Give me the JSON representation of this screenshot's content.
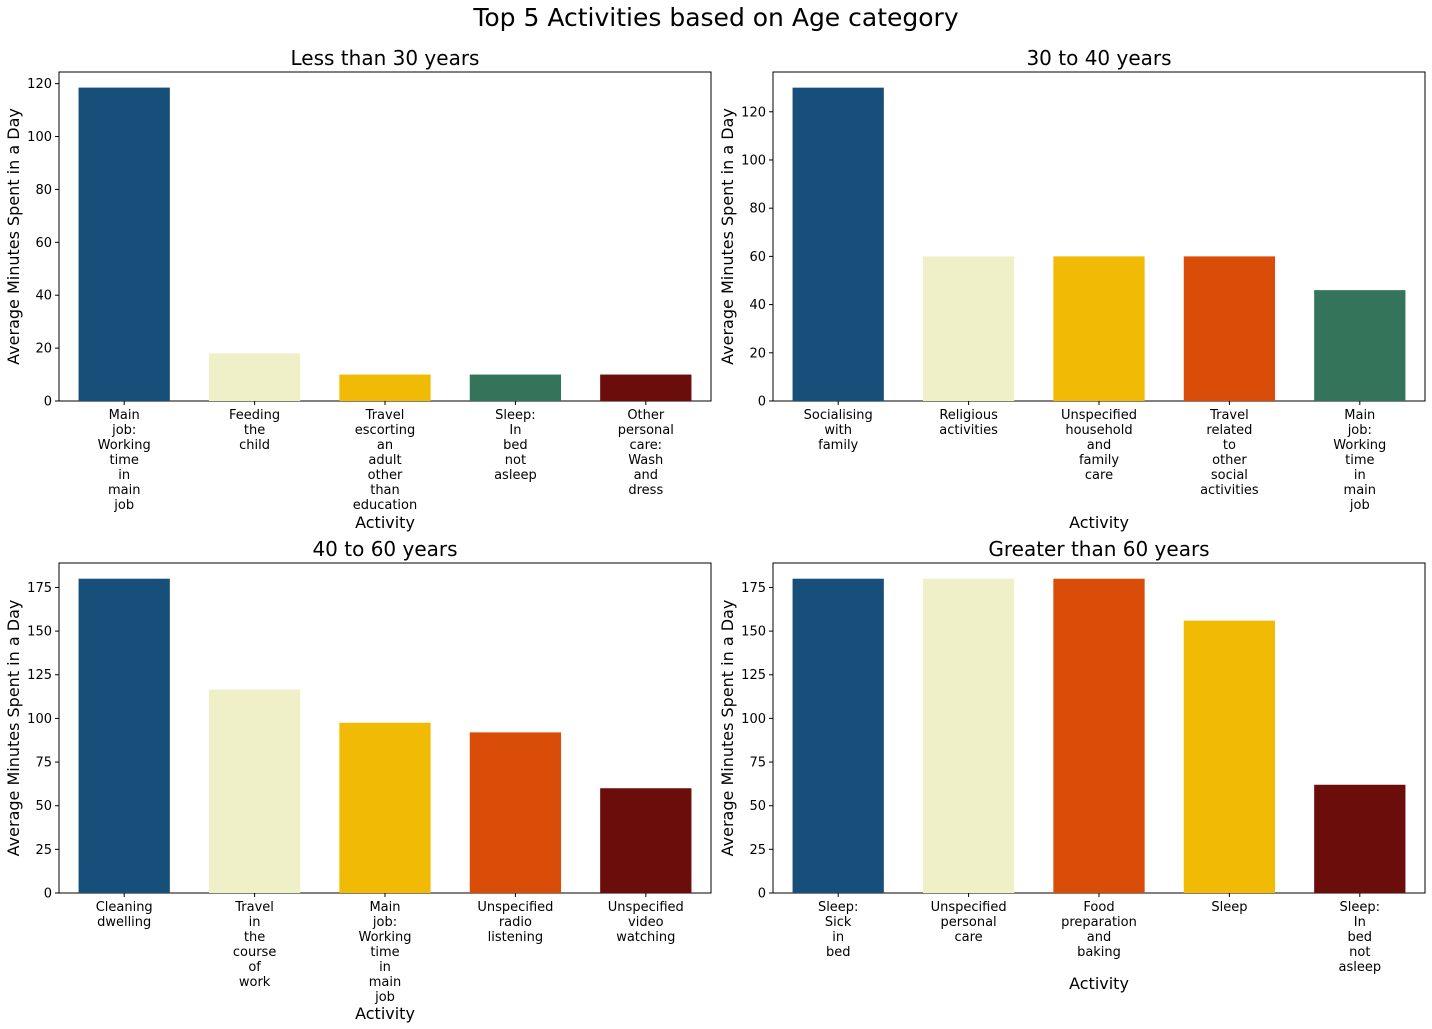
{
  "suptitle": "Top 5 Activities based on Age category",
  "chart_data": [
    {
      "type": "bar",
      "title": "Less than 30 years",
      "xlabel": "Activity",
      "ylabel": "Average Minutes Spent in a Day",
      "categories": [
        "Main\njob:\nWorking\ntime\nin\nmain\njob",
        "Feeding\nthe\nchild",
        "Travel\nescorting\nan\nadult\nother\nthan\neducation",
        "Sleep:\nIn\nbed\nnot\nasleep",
        "Other\npersonal\ncare:\nWash\nand\ndress"
      ],
      "values": [
        118.5,
        18,
        10,
        10,
        10
      ],
      "colors": [
        "#154f7a",
        "#f0f0c8",
        "#f1bb05",
        "#33745a",
        "#6b0e0b"
      ],
      "ylim": [
        0,
        124.4
      ],
      "yticks": [
        0,
        20,
        40,
        60,
        80,
        100,
        120
      ],
      "grid": false
    },
    {
      "type": "bar",
      "title": "30 to 40 years",
      "xlabel": "Activity",
      "ylabel": "Average Minutes Spent in a Day",
      "categories": [
        "Socialising\nwith\nfamily",
        "Religious\nactivities",
        "Unspecified\nhousehold\nand\nfamily\ncare",
        "Travel\nrelated\nto\nother\nsocial\nactivities",
        "Main\njob:\nWorking\ntime\nin\nmain\njob"
      ],
      "values": [
        130,
        60,
        60,
        60,
        46
      ],
      "colors": [
        "#154f7a",
        "#f0f0c8",
        "#f1bb05",
        "#d94d08",
        "#33745a"
      ],
      "ylim": [
        0,
        136.5
      ],
      "yticks": [
        0,
        20,
        40,
        60,
        80,
        100,
        120
      ],
      "grid": false
    },
    {
      "type": "bar",
      "title": "40 to 60 years",
      "xlabel": "Activity",
      "ylabel": "Average Minutes Spent in a Day",
      "categories": [
        "Cleaning\ndwelling",
        "Travel\nin\nthe\ncourse\nof\nwork",
        "Main\njob:\nWorking\ntime\nin\nmain\njob",
        "Unspecified\nradio\nlistening",
        "Unspecified\nvideo\nwatching"
      ],
      "values": [
        180,
        116.5,
        97.5,
        92,
        60
      ],
      "colors": [
        "#154f7a",
        "#f0f0c8",
        "#f1bb05",
        "#d94d08",
        "#6b0e0b"
      ],
      "ylim": [
        0,
        189
      ],
      "yticks": [
        0,
        25,
        50,
        75,
        100,
        125,
        150,
        175
      ],
      "grid": false
    },
    {
      "type": "bar",
      "title": "Greater than 60 years",
      "xlabel": "Activity",
      "ylabel": "Average Minutes Spent in a Day",
      "categories": [
        "Sleep:\nSick\nin\nbed",
        "Unspecified\npersonal\ncare",
        "Food\npreparation\nand\nbaking",
        "Sleep",
        "Sleep:\nIn\nbed\nnot\nasleep"
      ],
      "values": [
        180,
        180,
        180,
        156,
        62
      ],
      "colors": [
        "#154f7a",
        "#f0f0c8",
        "#d94d08",
        "#f1bb05",
        "#6b0e0b"
      ],
      "ylim": [
        0,
        189
      ],
      "yticks": [
        0,
        25,
        50,
        75,
        100,
        125,
        150,
        175
      ],
      "grid": false
    }
  ]
}
